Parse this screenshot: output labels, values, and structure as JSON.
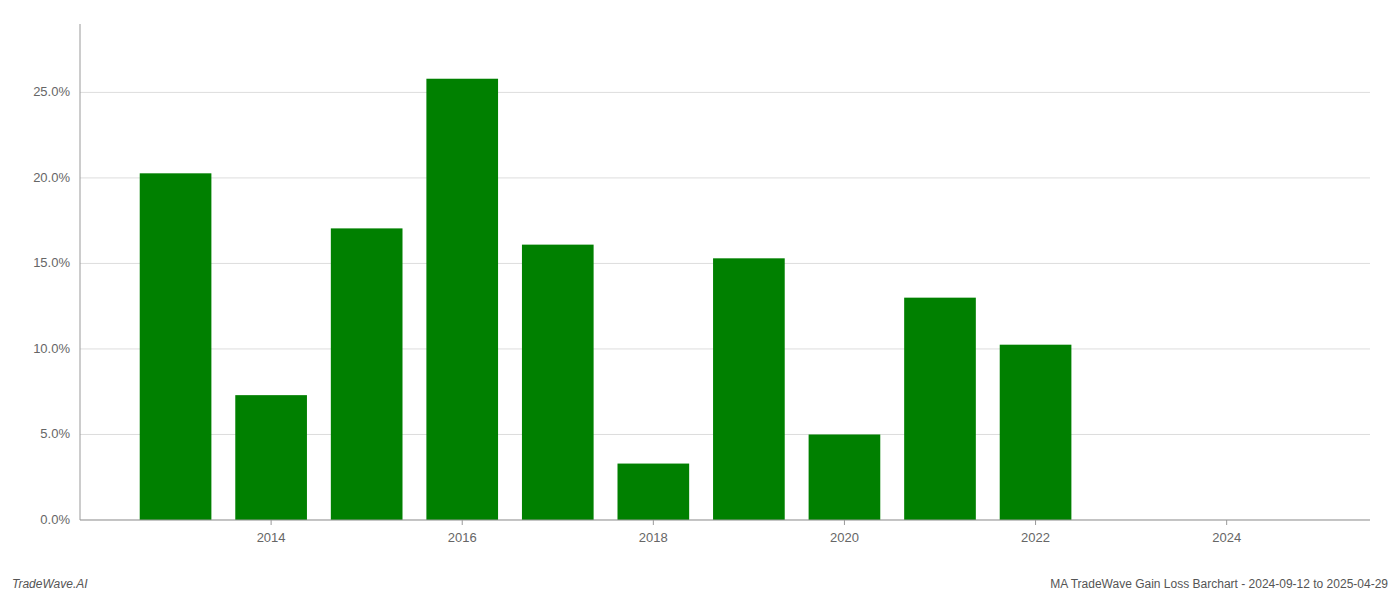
{
  "chart_data": {
    "type": "bar",
    "title": "MA TradeWave Gain Loss Barchart - 2024-09-12 to 2025-04-29",
    "annotations": [
      "TradeWave.AI"
    ],
    "x": [
      2013,
      2014,
      2015,
      2016,
      2017,
      2018,
      2019,
      2020,
      2021,
      2022,
      2023
    ],
    "values": [
      0.2027,
      0.073,
      0.1705,
      0.258,
      0.161,
      0.033,
      0.153,
      0.05,
      0.13,
      0.1025,
      0.0
    ],
    "color": "#008000",
    "xlim": [
      2012.0,
      2025.5
    ],
    "xticks": [
      2014,
      2016,
      2018,
      2020,
      2022,
      2024
    ],
    "ylim": [
      0,
      0.29
    ],
    "yticks": [
      {
        "value": 0.0,
        "label": "0.0%"
      },
      {
        "value": 0.05,
        "label": "5.0%"
      },
      {
        "value": 0.1,
        "label": "10.0%"
      },
      {
        "value": 0.15,
        "label": "15.0%"
      },
      {
        "value": 0.2,
        "label": "20.0%"
      },
      {
        "value": 0.25,
        "label": "25.0%"
      }
    ],
    "grid": true
  }
}
